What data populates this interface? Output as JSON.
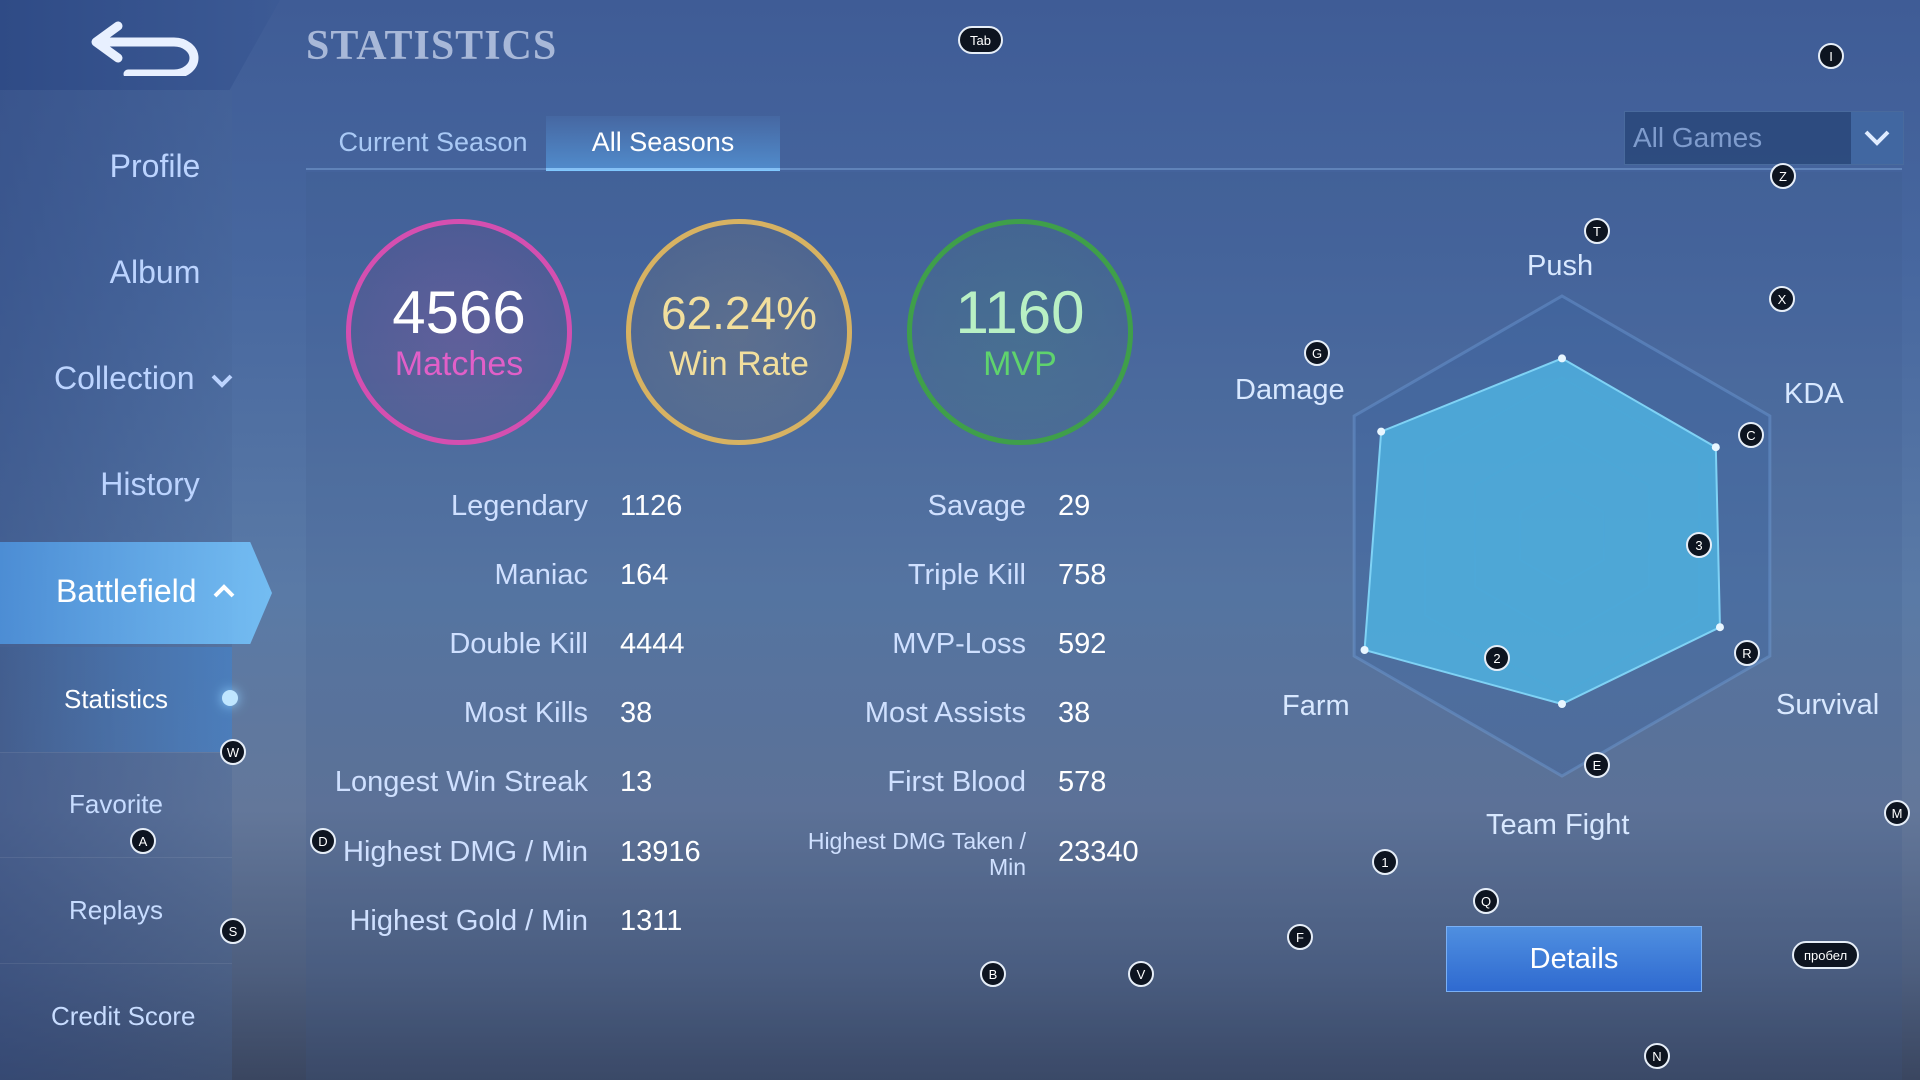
{
  "page_title": "STATISTICS",
  "sidebar": {
    "items": [
      {
        "label": "Profile"
      },
      {
        "label": "Album"
      },
      {
        "label": "Collection"
      },
      {
        "label": "History"
      },
      {
        "label": "Battlefield"
      }
    ],
    "subitems": [
      {
        "label": "Statistics"
      },
      {
        "label": "Favorite"
      },
      {
        "label": "Replays"
      },
      {
        "label": "Credit Score"
      }
    ]
  },
  "tabs": [
    {
      "label": "Current Season"
    },
    {
      "label": "All Seasons"
    }
  ],
  "filter": {
    "selected": "All Games"
  },
  "summary": [
    {
      "value": "4566",
      "label": "Matches",
      "color": "#d44fb0"
    },
    {
      "value": "62.24%",
      "label": "Win Rate",
      "color": "#d7b262"
    },
    {
      "value": "1160",
      "label": "MVP",
      "color": "#3f9f4a"
    }
  ],
  "stats_left": [
    {
      "label": "Legendary",
      "value": "1126"
    },
    {
      "label": "Maniac",
      "value": "164"
    },
    {
      "label": "Double Kill",
      "value": "4444"
    },
    {
      "label": "Most Kills",
      "value": "38"
    },
    {
      "label": "Longest Win Streak",
      "value": "13"
    },
    {
      "label": "Highest DMG / Min",
      "value": "13916"
    },
    {
      "label": "Highest Gold / Min",
      "value": "1311"
    }
  ],
  "stats_right": [
    {
      "label": "Savage",
      "value": "29"
    },
    {
      "label": "Triple Kill",
      "value": "758"
    },
    {
      "label": "MVP-Loss",
      "value": "592"
    },
    {
      "label": "Most Assists",
      "value": "38"
    },
    {
      "label": "First Blood",
      "value": "578"
    },
    {
      "label": "Highest DMG Taken / Min",
      "value": "23340"
    }
  ],
  "radar": {
    "axes": [
      "Push",
      "KDA",
      "Survival",
      "Team Fight",
      "Farm",
      "Damage"
    ],
    "levels": [
      0.74,
      0.74,
      0.76,
      0.7,
      0.95,
      0.87
    ],
    "color": "#4fb7e6"
  },
  "details_button": "Details",
  "key_hints": {
    "tab": "Tab",
    "i": "I",
    "z": "Z",
    "t": "T",
    "x": "X",
    "g": "G",
    "c": "C",
    "three": "3",
    "r": "R",
    "two": "2",
    "e": "E",
    "m": "M",
    "w": "W",
    "a": "A",
    "d": "D",
    "s": "S",
    "one": "1",
    "q": "Q",
    "f": "F",
    "b": "B",
    "v": "V",
    "space": "пробел",
    "n": "N"
  }
}
